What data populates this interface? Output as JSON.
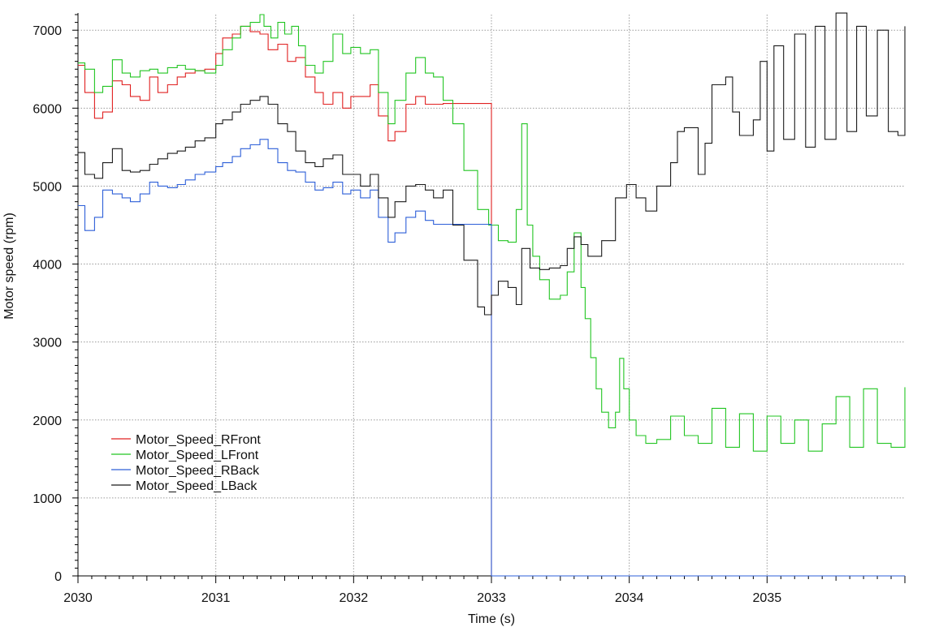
{
  "chart_data": {
    "type": "line",
    "xlabel": "Time (s)",
    "ylabel": "Motor speed (rpm)",
    "xlim": [
      2030,
      2036
    ],
    "ylim": [
      0,
      7200
    ],
    "x_ticks": [
      2030,
      2031,
      2032,
      2033,
      2034,
      2035
    ],
    "x_tick_labels": [
      "2030",
      "2031",
      "2032",
      "2033",
      "2034",
      "2035"
    ],
    "y_ticks": [
      0,
      1000,
      2000,
      3000,
      4000,
      5000,
      6000,
      7000
    ],
    "y_tick_labels": [
      "0",
      "1000",
      "2000",
      "3000",
      "4000",
      "5000",
      "6000",
      "7000"
    ],
    "grid": true,
    "legend_position": "bottom-left",
    "series": [
      {
        "name": "Motor_Speed_RFront",
        "color": "#e02020",
        "x": [
          2030.0,
          2030.05,
          2030.12,
          2030.18,
          2030.25,
          2030.32,
          2030.38,
          2030.45,
          2030.52,
          2030.58,
          2030.65,
          2030.72,
          2030.78,
          2030.85,
          2030.92,
          2031.0,
          2031.05,
          2031.12,
          2031.18,
          2031.25,
          2031.32,
          2031.38,
          2031.45,
          2031.52,
          2031.58,
          2031.65,
          2031.72,
          2031.78,
          2031.85,
          2031.92,
          2031.98,
          2032.05,
          2032.12,
          2032.18,
          2032.25,
          2032.3,
          2032.38,
          2032.45,
          2032.52,
          2032.58,
          2032.65,
          2032.72,
          2032.8,
          2032.9,
          2032.98,
          2032.99,
          2033.0,
          2033.2,
          2033.5,
          2034.0,
          2034.5,
          2035.0,
          2035.5,
          2036.0
        ],
        "values": [
          6550,
          6200,
          5870,
          5950,
          6350,
          6300,
          6150,
          6100,
          6400,
          6200,
          6300,
          6400,
          6450,
          6480,
          6500,
          6700,
          6900,
          6950,
          7050,
          6980,
          6950,
          6750,
          6820,
          6600,
          6650,
          6400,
          6200,
          6050,
          6200,
          6000,
          6150,
          6150,
          6300,
          5900,
          5580,
          5700,
          6050,
          6150,
          6050,
          6050,
          6060,
          6060,
          6060,
          6060,
          6060,
          6060,
          0,
          0,
          0,
          0,
          0,
          0,
          0,
          0
        ]
      },
      {
        "name": "Motor_Speed_LFront",
        "color": "#22c522",
        "x": [
          2030.0,
          2030.05,
          2030.12,
          2030.18,
          2030.25,
          2030.32,
          2030.38,
          2030.45,
          2030.52,
          2030.58,
          2030.65,
          2030.72,
          2030.78,
          2030.85,
          2030.92,
          2031.0,
          2031.05,
          2031.12,
          2031.18,
          2031.25,
          2031.32,
          2031.35,
          2031.4,
          2031.45,
          2031.5,
          2031.55,
          2031.6,
          2031.65,
          2031.72,
          2031.78,
          2031.85,
          2031.92,
          2031.98,
          2032.05,
          2032.12,
          2032.18,
          2032.25,
          2032.3,
          2032.38,
          2032.45,
          2032.52,
          2032.58,
          2032.65,
          2032.72,
          2032.8,
          2032.9,
          2032.98,
          2033.05,
          2033.12,
          2033.18,
          2033.22,
          2033.26,
          2033.3,
          2033.35,
          2033.42,
          2033.5,
          2033.55,
          2033.6,
          2033.65,
          2033.68,
          2033.72,
          2033.76,
          2033.8,
          2033.85,
          2033.9,
          2033.93,
          2033.96,
          2034.0,
          2034.05,
          2034.12,
          2034.2,
          2034.3,
          2034.4,
          2034.5,
          2034.6,
          2034.7,
          2034.8,
          2034.9,
          2035.0,
          2035.1,
          2035.2,
          2035.3,
          2035.4,
          2035.5,
          2035.6,
          2035.7,
          2035.8,
          2035.9,
          2036.0
        ],
        "values": [
          6580,
          6500,
          6200,
          6280,
          6620,
          6450,
          6400,
          6480,
          6500,
          6450,
          6520,
          6550,
          6500,
          6480,
          6450,
          6550,
          6750,
          6900,
          7050,
          7100,
          7200,
          7050,
          6900,
          7100,
          6950,
          7050,
          6800,
          6550,
          6450,
          6600,
          6950,
          6700,
          6780,
          6700,
          6750,
          6200,
          5800,
          6100,
          6450,
          6650,
          6450,
          6400,
          6100,
          5800,
          5200,
          4700,
          4500,
          4300,
          4280,
          4700,
          5800,
          4500,
          4100,
          3800,
          3550,
          3600,
          3900,
          4400,
          3700,
          3300,
          2800,
          2400,
          2100,
          1900,
          2100,
          2790,
          2400,
          2000,
          1800,
          1700,
          1750,
          2050,
          1800,
          1700,
          2150,
          1650,
          2080,
          1600,
          2050,
          1700,
          2000,
          1600,
          1950,
          2300,
          1650,
          2400,
          1700,
          1650,
          2420
        ]
      },
      {
        "name": "Motor_Speed_RBack",
        "color": "#2d5fd8",
        "x": [
          2030.0,
          2030.05,
          2030.12,
          2030.18,
          2030.25,
          2030.32,
          2030.38,
          2030.45,
          2030.52,
          2030.58,
          2030.65,
          2030.72,
          2030.78,
          2030.85,
          2030.92,
          2031.0,
          2031.05,
          2031.12,
          2031.18,
          2031.25,
          2031.32,
          2031.38,
          2031.45,
          2031.52,
          2031.58,
          2031.65,
          2031.72,
          2031.78,
          2031.85,
          2031.92,
          2031.98,
          2032.05,
          2032.12,
          2032.18,
          2032.25,
          2032.3,
          2032.38,
          2032.45,
          2032.52,
          2032.58,
          2032.65,
          2032.72,
          2032.8,
          2032.9,
          2032.98,
          2032.99,
          2033.0,
          2033.2,
          2033.5,
          2034.0,
          2034.5,
          2035.0,
          2035.5,
          2036.0
        ],
        "values": [
          4750,
          4430,
          4600,
          4950,
          4900,
          4850,
          4800,
          4900,
          5050,
          5000,
          4980,
          5020,
          5080,
          5150,
          5180,
          5250,
          5300,
          5380,
          5480,
          5530,
          5600,
          5480,
          5300,
          5200,
          5180,
          5050,
          4950,
          4980,
          5050,
          4900,
          4950,
          4850,
          4950,
          4600,
          4280,
          4400,
          4600,
          4680,
          4560,
          4510,
          4510,
          4510,
          4510,
          4510,
          4510,
          4510,
          0,
          0,
          0,
          0,
          0,
          0,
          0,
          0
        ]
      },
      {
        "name": "Motor_Speed_LBack",
        "color": "#1a1a1a",
        "x": [
          2030.0,
          2030.05,
          2030.12,
          2030.18,
          2030.25,
          2030.32,
          2030.38,
          2030.45,
          2030.52,
          2030.58,
          2030.65,
          2030.72,
          2030.78,
          2030.85,
          2030.92,
          2031.0,
          2031.05,
          2031.12,
          2031.18,
          2031.25,
          2031.32,
          2031.38,
          2031.45,
          2031.52,
          2031.58,
          2031.65,
          2031.72,
          2031.78,
          2031.85,
          2031.92,
          2031.98,
          2032.05,
          2032.12,
          2032.18,
          2032.25,
          2032.3,
          2032.38,
          2032.45,
          2032.52,
          2032.58,
          2032.65,
          2032.72,
          2032.8,
          2032.9,
          2032.95,
          2033.0,
          2033.05,
          2033.12,
          2033.18,
          2033.22,
          2033.28,
          2033.35,
          2033.42,
          2033.5,
          2033.55,
          2033.6,
          2033.65,
          2033.7,
          2033.8,
          2033.9,
          2033.98,
          2034.05,
          2034.12,
          2034.2,
          2034.3,
          2034.35,
          2034.4,
          2034.5,
          2034.55,
          2034.6,
          2034.7,
          2034.75,
          2034.8,
          2034.9,
          2034.95,
          2035.0,
          2035.05,
          2035.12,
          2035.2,
          2035.28,
          2035.35,
          2035.42,
          2035.5,
          2035.58,
          2035.65,
          2035.72,
          2035.8,
          2035.88,
          2035.95,
          2036.0
        ],
        "values": [
          5430,
          5150,
          5100,
          5300,
          5480,
          5200,
          5180,
          5200,
          5280,
          5350,
          5420,
          5450,
          5500,
          5580,
          5620,
          5800,
          5850,
          5950,
          6050,
          6100,
          6150,
          6050,
          5800,
          5700,
          5450,
          5300,
          5250,
          5350,
          5400,
          5150,
          5150,
          5000,
          5150,
          4850,
          4600,
          4800,
          5000,
          5020,
          4950,
          4850,
          4950,
          4500,
          4050,
          3450,
          3350,
          3600,
          3780,
          3700,
          3480,
          4200,
          3950,
          3930,
          3950,
          3980,
          4200,
          4350,
          4250,
          4100,
          4300,
          4850,
          5020,
          4850,
          4680,
          5000,
          5300,
          5700,
          5750,
          5150,
          5550,
          6300,
          6400,
          5950,
          5650,
          5850,
          6600,
          5450,
          6800,
          5600,
          6950,
          5500,
          7050,
          5600,
          7220,
          5700,
          7050,
          5900,
          7000,
          5700,
          5650,
          7050
        ]
      }
    ]
  }
}
